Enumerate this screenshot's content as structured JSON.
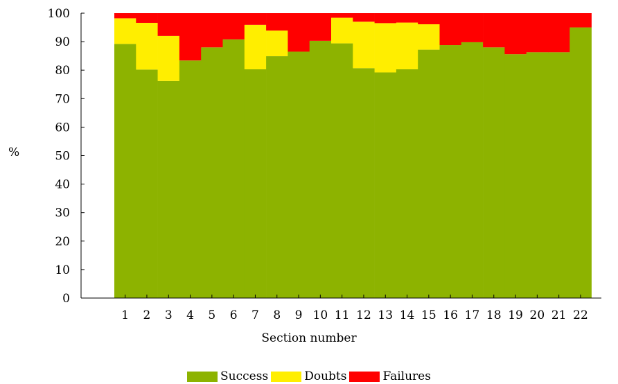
{
  "chart_data": {
    "type": "bar",
    "stacked": true,
    "xlabel": "Section number",
    "ylabel": "%",
    "ylim": [
      0,
      100
    ],
    "yticks": [
      0,
      10,
      20,
      30,
      40,
      50,
      60,
      70,
      80,
      90,
      100
    ],
    "categories": [
      "1",
      "2",
      "3",
      "4",
      "5",
      "6",
      "7",
      "8",
      "9",
      "10",
      "11",
      "12",
      "13",
      "14",
      "15",
      "16",
      "17",
      "18",
      "19",
      "20",
      "21",
      "22"
    ],
    "series": [
      {
        "name": "Success",
        "color": "#8db300",
        "values": [
          89.2,
          80.2,
          76.2,
          83.4,
          88.0,
          90.8,
          80.3,
          84.9,
          86.5,
          90.3,
          89.4,
          80.7,
          79.2,
          80.3,
          87.2,
          88.8,
          89.8,
          88.0,
          85.6,
          86.3,
          86.3,
          95.0
        ]
      },
      {
        "name": "Doubts",
        "color": "#ffee00",
        "values": [
          9.0,
          16.4,
          15.8,
          0,
          0,
          0,
          15.6,
          9.0,
          0,
          0,
          9.0,
          16.3,
          17.3,
          16.4,
          8.9,
          0,
          0,
          0,
          0,
          0,
          0,
          0
        ]
      },
      {
        "name": "Failures",
        "color": "#ff0000",
        "values": [
          1.8,
          3.4,
          8.0,
          16.6,
          12.0,
          9.2,
          4.1,
          6.1,
          13.5,
          9.7,
          1.6,
          3.0,
          3.5,
          3.3,
          3.9,
          11.2,
          10.2,
          12.0,
          14.4,
          13.7,
          13.7,
          5.0
        ]
      }
    ],
    "grid": false,
    "legend_position": "bottom-center"
  }
}
